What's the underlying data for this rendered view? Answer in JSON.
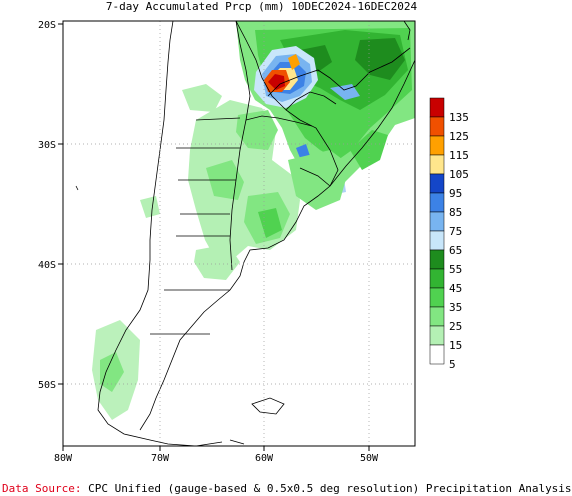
{
  "title": "7-day Accumulated Prcp (mm) 10DEC2024-16DEC2024",
  "map": {
    "lat_ticks": [
      "20S",
      "30S",
      "40S",
      "50S"
    ],
    "lon_ticks": [
      "80W",
      "70W",
      "60W",
      "50W"
    ]
  },
  "legend": {
    "labels": [
      "135",
      "125",
      "115",
      "105",
      "95",
      "85",
      "75",
      "65",
      "55",
      "45",
      "35",
      "25",
      "15",
      "5"
    ],
    "colors": [
      "#c80000",
      "#f05000",
      "#ffa000",
      "#ffe68c",
      "#1446c8",
      "#3c82e6",
      "#78b4f0",
      "#c8e6fa",
      "#1e8c1e",
      "#32b432",
      "#50d250",
      "#82e682",
      "#b4f0b4",
      "#ffffff"
    ]
  },
  "footer": {
    "label": "Data Source:",
    "text": " CPC Unified (gauge-based & 0.5x0.5 deg resolution) Precipitation Analysis"
  }
}
